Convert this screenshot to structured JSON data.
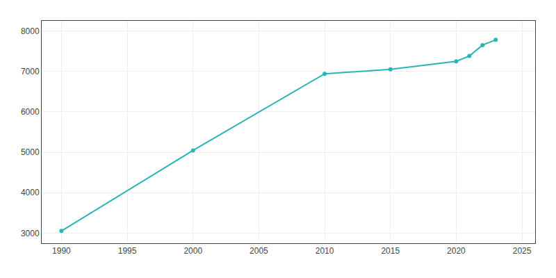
{
  "chart_data": {
    "type": "line",
    "x": [
      1990,
      2000,
      2010,
      2015,
      2020,
      2021,
      2022,
      2023
    ],
    "values": [
      3054,
      5045,
      6940,
      7050,
      7250,
      7380,
      7650,
      7780
    ],
    "color": "#2ab5b5",
    "marker": "circle",
    "line_style": "solid",
    "xlim": [
      1988.5,
      2026
    ],
    "ylim": [
      2750,
      8250
    ],
    "xticks": [
      1990,
      1995,
      2000,
      2005,
      2010,
      2015,
      2020,
      2025
    ],
    "yticks": [
      3000,
      4000,
      5000,
      6000,
      7000,
      8000
    ],
    "grid": true
  }
}
